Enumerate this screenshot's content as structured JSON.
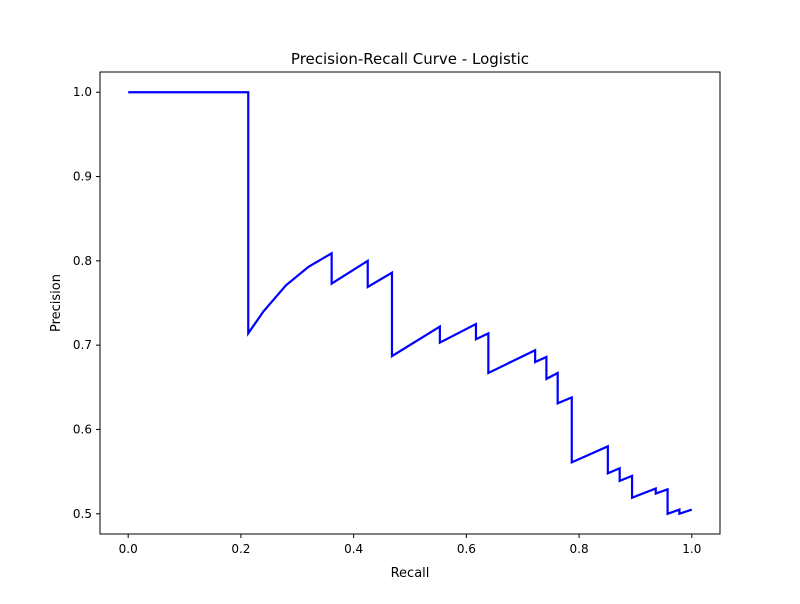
{
  "chart_data": {
    "type": "line",
    "title": "Precision-Recall Curve - Logistic",
    "xlabel": "Recall",
    "ylabel": "Precision",
    "xlim": [
      -0.05,
      1.05
    ],
    "ylim": [
      0.476,
      1.024
    ],
    "grid": false,
    "legend": "none",
    "x_ticks": [
      0.0,
      0.2,
      0.4,
      0.6,
      0.8,
      1.0
    ],
    "x_tick_labels": [
      "0.0",
      "0.2",
      "0.4",
      "0.6",
      "0.8",
      "1.0"
    ],
    "y_ticks": [
      0.5,
      0.6,
      0.7,
      0.8,
      0.9,
      1.0
    ],
    "y_tick_labels": [
      "0.5",
      "0.6",
      "0.7",
      "0.8",
      "0.9",
      "1.0"
    ],
    "series": [
      {
        "color": "#0000ff",
        "x": [
          0.0,
          0.213,
          0.213,
          0.24,
          0.28,
          0.32,
          0.361,
          0.361,
          0.425,
          0.425,
          0.468,
          0.468,
          0.553,
          0.553,
          0.617,
          0.617,
          0.639,
          0.639,
          0.722,
          0.722,
          0.742,
          0.742,
          0.762,
          0.762,
          0.787,
          0.787,
          0.851,
          0.851,
          0.872,
          0.872,
          0.894,
          0.894,
          0.936,
          0.936,
          0.957,
          0.957,
          0.978,
          0.978,
          1.0
        ],
        "y": [
          1.0,
          1.0,
          0.714,
          0.74,
          0.771,
          0.793,
          0.809,
          0.773,
          0.8,
          0.769,
          0.786,
          0.687,
          0.722,
          0.703,
          0.725,
          0.707,
          0.714,
          0.667,
          0.694,
          0.68,
          0.686,
          0.66,
          0.667,
          0.631,
          0.638,
          0.561,
          0.58,
          0.548,
          0.554,
          0.539,
          0.545,
          0.519,
          0.53,
          0.524,
          0.529,
          0.5,
          0.505,
          0.5,
          0.505
        ]
      }
    ]
  }
}
